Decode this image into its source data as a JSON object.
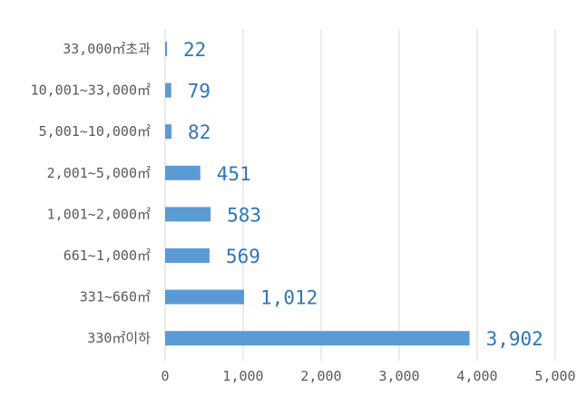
{
  "chart_data": {
    "type": "bar",
    "orientation": "horizontal",
    "categories": [
      "33,000㎡초과",
      "10,001~33,000㎡",
      "5,001~10,000㎡",
      "2,001~5,000㎡",
      "1,001~2,000㎡",
      "661~1,000㎡",
      "331~660㎡",
      "330㎡이하"
    ],
    "values": [
      22,
      79,
      82,
      451,
      583,
      569,
      1012,
      3902
    ],
    "value_labels": [
      "22",
      "79",
      "82",
      "451",
      "583",
      "569",
      "1,012",
      "3,902"
    ],
    "xlim": [
      0,
      5000
    ],
    "x_ticks": [
      0,
      1000,
      2000,
      3000,
      4000,
      5000
    ],
    "x_tick_labels": [
      "0",
      "1,000",
      "2,000",
      "3,000",
      "4,000",
      "5,000"
    ],
    "grid": "vertical",
    "legend": "none",
    "colors": {
      "bar": "#5b9bd5",
      "data_label": "#2e75b6",
      "grid": "#d9d9d9",
      "axis_text": "#595959"
    }
  }
}
